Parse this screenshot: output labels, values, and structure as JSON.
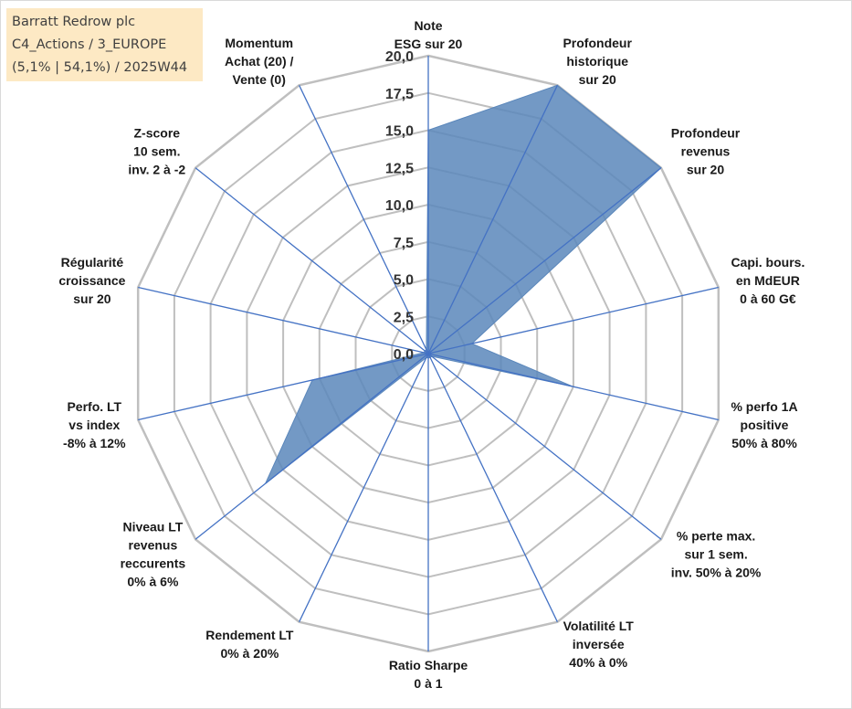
{
  "info": {
    "line1": "Barratt Redrow plc",
    "line2": "C4_Actions / 3_EUROPE",
    "line3": "(5,1% | 54,1%) / 2025W44"
  },
  "chart_data": {
    "type": "radar",
    "axes": [
      [
        "Note",
        "ESG sur 20"
      ],
      [
        "Profondeur",
        "historique",
        "sur 20"
      ],
      [
        "Profondeur",
        "revenus",
        "sur 20"
      ],
      [
        "Capi. bours.",
        "en MdEUR",
        "0 à 60 G€"
      ],
      [
        "% perfo 1A",
        "positive",
        "50% à 80%"
      ],
      [
        "% perte max.",
        "sur 1 sem.",
        "inv. 50% à 20%"
      ],
      [
        "Volatilité LT",
        "inversée",
        "40% à 0%"
      ],
      [
        "Ratio Sharpe",
        "0 à 1"
      ],
      [
        "Rendement LT",
        "0% à 20%"
      ],
      [
        "Niveau LT",
        "revenus",
        "reccurents",
        "0% à 6%"
      ],
      [
        "Perfo. LT",
        "vs index",
        "-8% à 12%"
      ],
      [
        "Régularité",
        "croissance",
        "sur 20"
      ],
      [
        "Z-score",
        "10 sem.",
        "inv. 2 à -2"
      ],
      [
        "Momentum",
        "Achat (20) /",
        "Vente (0)"
      ]
    ],
    "values": [
      15.0,
      20.0,
      20.0,
      3.0,
      10.0,
      0.3,
      0.3,
      0.3,
      0.3,
      14.0,
      8.0,
      0.3,
      0.3,
      0.3
    ],
    "ticks": [
      "0,0",
      "2,5",
      "5,0",
      "7,5",
      "10,0",
      "12,5",
      "15,0",
      "17,5",
      "20,0"
    ],
    "ylim": [
      0,
      20
    ],
    "grid": true,
    "fill_color": "#5b87bb",
    "line_color": "#4472c4",
    "grid_color": "#bfbfbf"
  }
}
